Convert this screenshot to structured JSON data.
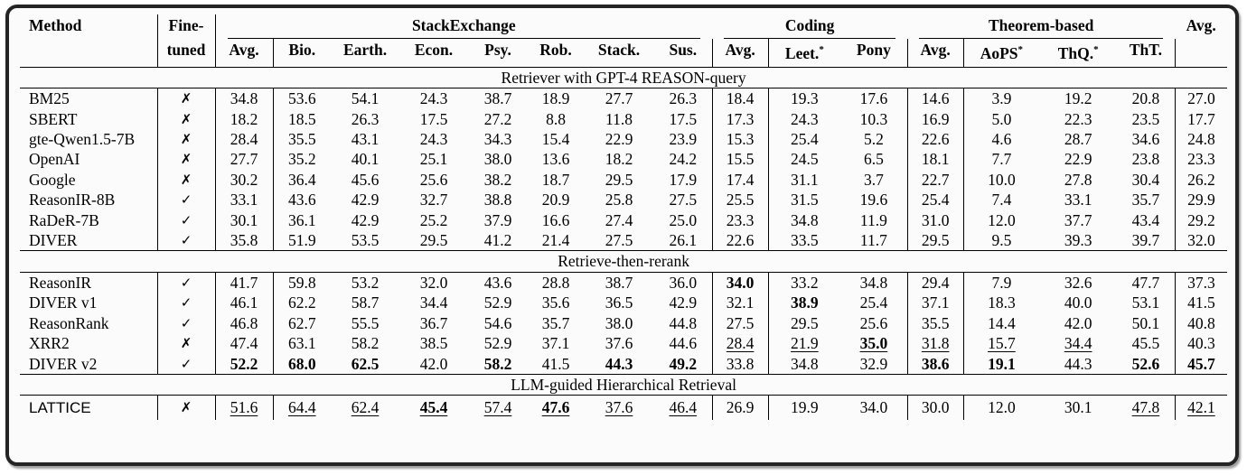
{
  "table": {
    "checkmark": "✓",
    "crossmark": "✗",
    "header": {
      "method": "Method",
      "fine_line1": "Fine-",
      "fine_line2": "tuned",
      "avg": "Avg.",
      "groups": [
        {
          "label": "StackExchange"
        },
        {
          "label": "Coding"
        },
        {
          "label": "Theorem-based"
        }
      ],
      "columns": [
        {
          "label": "Avg.",
          "sup": ""
        },
        {
          "label": "Bio.",
          "sup": ""
        },
        {
          "label": "Earth.",
          "sup": ""
        },
        {
          "label": "Econ.",
          "sup": ""
        },
        {
          "label": "Psy.",
          "sup": ""
        },
        {
          "label": "Rob.",
          "sup": ""
        },
        {
          "label": "Stack.",
          "sup": ""
        },
        {
          "label": "Sus.",
          "sup": ""
        },
        {
          "label": "Avg.",
          "sup": ""
        },
        {
          "label": "Leet.",
          "sup": "*"
        },
        {
          "label": "Pony",
          "sup": ""
        },
        {
          "label": "Avg.",
          "sup": ""
        },
        {
          "label": "AoPS",
          "sup": "*"
        },
        {
          "label": "ThQ.",
          "sup": "*"
        },
        {
          "label": "ThT.",
          "sup": ""
        }
      ]
    },
    "sections": [
      {
        "title": "Retriever with GPT-4 REASON-query",
        "rows": [
          {
            "method": "BM25",
            "tuned": false,
            "sans": false,
            "values": [
              "34.8",
              "53.6",
              "54.1",
              "24.3",
              "38.7",
              "18.9",
              "27.7",
              "26.3",
              "18.4",
              "19.3",
              "17.6",
              "14.6",
              "3.9",
              "19.2",
              "20.8",
              "27.0"
            ],
            "styles": [
              "",
              "",
              "",
              "",
              "",
              "",
              "",
              "",
              "",
              "",
              "",
              "",
              "",
              "",
              "",
              ""
            ]
          },
          {
            "method": "SBERT",
            "tuned": false,
            "sans": false,
            "values": [
              "18.2",
              "18.5",
              "26.3",
              "17.5",
              "27.2",
              "8.8",
              "11.8",
              "17.5",
              "17.3",
              "24.3",
              "10.3",
              "16.9",
              "5.0",
              "22.3",
              "23.5",
              "17.7"
            ],
            "styles": [
              "",
              "",
              "",
              "",
              "",
              "",
              "",
              "",
              "",
              "",
              "",
              "",
              "",
              "",
              "",
              ""
            ]
          },
          {
            "method": "gte-Qwen1.5-7B",
            "tuned": false,
            "sans": false,
            "values": [
              "28.4",
              "35.5",
              "43.1",
              "24.3",
              "34.3",
              "15.4",
              "22.9",
              "23.9",
              "15.3",
              "25.4",
              "5.2",
              "22.6",
              "4.6",
              "28.7",
              "34.6",
              "24.8"
            ],
            "styles": [
              "",
              "",
              "",
              "",
              "",
              "",
              "",
              "",
              "",
              "",
              "",
              "",
              "",
              "",
              "",
              ""
            ]
          },
          {
            "method": "OpenAI",
            "tuned": false,
            "sans": false,
            "values": [
              "27.7",
              "35.2",
              "40.1",
              "25.1",
              "38.0",
              "13.6",
              "18.2",
              "24.2",
              "15.5",
              "24.5",
              "6.5",
              "18.1",
              "7.7",
              "22.9",
              "23.8",
              "23.3"
            ],
            "styles": [
              "",
              "",
              "",
              "",
              "",
              "",
              "",
              "",
              "",
              "",
              "",
              "",
              "",
              "",
              "",
              ""
            ]
          },
          {
            "method": "Google",
            "tuned": false,
            "sans": false,
            "values": [
              "30.2",
              "36.4",
              "45.6",
              "25.6",
              "38.2",
              "18.7",
              "29.5",
              "17.9",
              "17.4",
              "31.1",
              "3.7",
              "22.7",
              "10.0",
              "27.8",
              "30.4",
              "26.2"
            ],
            "styles": [
              "",
              "",
              "",
              "",
              "",
              "",
              "",
              "",
              "",
              "",
              "",
              "",
              "",
              "",
              "",
              ""
            ]
          },
          {
            "method": "ReasonIR-8B",
            "tuned": true,
            "sans": false,
            "values": [
              "33.1",
              "43.6",
              "42.9",
              "32.7",
              "38.8",
              "20.9",
              "25.8",
              "27.5",
              "25.5",
              "31.5",
              "19.6",
              "25.4",
              "7.4",
              "33.1",
              "35.7",
              "29.9"
            ],
            "styles": [
              "",
              "",
              "",
              "",
              "",
              "",
              "",
              "",
              "",
              "",
              "",
              "",
              "",
              "",
              "",
              ""
            ]
          },
          {
            "method": "RaDeR-7B",
            "tuned": true,
            "sans": false,
            "values": [
              "30.1",
              "36.1",
              "42.9",
              "25.2",
              "37.9",
              "16.6",
              "27.4",
              "25.0",
              "23.3",
              "34.8",
              "11.9",
              "31.0",
              "12.0",
              "37.7",
              "43.4",
              "29.2"
            ],
            "styles": [
              "",
              "",
              "",
              "",
              "",
              "",
              "",
              "",
              "",
              "",
              "",
              "",
              "",
              "",
              "",
              ""
            ]
          },
          {
            "method": "DIVER",
            "tuned": true,
            "sans": false,
            "values": [
              "35.8",
              "51.9",
              "53.5",
              "29.5",
              "41.2",
              "21.4",
              "27.5",
              "26.1",
              "22.6",
              "33.5",
              "11.7",
              "29.5",
              "9.5",
              "39.3",
              "39.7",
              "32.0"
            ],
            "styles": [
              "",
              "",
              "",
              "",
              "",
              "",
              "",
              "",
              "",
              "",
              "",
              "",
              "",
              "",
              "",
              ""
            ]
          }
        ]
      },
      {
        "title": "Retrieve-then-rerank",
        "rows": [
          {
            "method": "ReasonIR",
            "tuned": true,
            "sans": false,
            "values": [
              "41.7",
              "59.8",
              "53.2",
              "32.0",
              "43.6",
              "28.8",
              "38.7",
              "36.0",
              "34.0",
              "33.2",
              "34.8",
              "29.4",
              "7.9",
              "32.6",
              "47.7",
              "37.3"
            ],
            "styles": [
              "",
              "",
              "",
              "",
              "",
              "",
              "",
              "",
              "b",
              "",
              "",
              "",
              "",
              "",
              "",
              ""
            ]
          },
          {
            "method": "DIVER v1",
            "tuned": true,
            "sans": false,
            "values": [
              "46.1",
              "62.2",
              "58.7",
              "34.4",
              "52.9",
              "35.6",
              "36.5",
              "42.9",
              "32.1",
              "38.9",
              "25.4",
              "37.1",
              "18.3",
              "40.0",
              "53.1",
              "41.5"
            ],
            "styles": [
              "",
              "",
              "",
              "",
              "",
              "",
              "",
              "",
              "",
              "b",
              "",
              "",
              "",
              "",
              "",
              ""
            ]
          },
          {
            "method": "ReasonRank",
            "tuned": true,
            "sans": false,
            "values": [
              "46.8",
              "62.7",
              "55.5",
              "36.7",
              "54.6",
              "35.7",
              "38.0",
              "44.8",
              "27.5",
              "29.5",
              "25.6",
              "35.5",
              "14.4",
              "42.0",
              "50.1",
              "40.8"
            ],
            "styles": [
              "",
              "",
              "",
              "",
              "",
              "",
              "",
              "",
              "",
              "",
              "",
              "",
              "",
              "",
              "",
              ""
            ]
          },
          {
            "method": "XRR2",
            "tuned": false,
            "sans": false,
            "values": [
              "47.4",
              "63.1",
              "58.2",
              "38.5",
              "52.9",
              "37.1",
              "37.6",
              "44.6",
              "28.4",
              "21.9",
              "35.0",
              "31.8",
              "15.7",
              "34.4",
              "45.5",
              "40.3"
            ],
            "styles": [
              "",
              "",
              "",
              "",
              "",
              "",
              "",
              "",
              "u",
              "u",
              "bu",
              "u",
              "u",
              "u",
              "",
              ""
            ]
          },
          {
            "method": "DIVER v2",
            "tuned": true,
            "sans": false,
            "values": [
              "52.2",
              "68.0",
              "62.5",
              "42.0",
              "58.2",
              "41.5",
              "44.3",
              "49.2",
              "33.8",
              "34.8",
              "32.9",
              "38.6",
              "19.1",
              "44.3",
              "52.6",
              "45.7"
            ],
            "styles": [
              "b",
              "b",
              "b",
              "",
              "b",
              "",
              "b",
              "b",
              "",
              "",
              "",
              "b",
              "b",
              "",
              "b",
              "b"
            ]
          }
        ]
      },
      {
        "title": "LLM-guided Hierarchical Retrieval",
        "rows": [
          {
            "method": "LATTICE",
            "tuned": false,
            "sans": true,
            "values": [
              "51.6",
              "64.4",
              "62.4",
              "45.4",
              "57.4",
              "47.6",
              "37.6",
              "46.4",
              "26.9",
              "19.9",
              "34.0",
              "30.0",
              "12.0",
              "30.1",
              "47.8",
              "42.1"
            ],
            "styles": [
              "u",
              "u",
              "u",
              "bu",
              "u",
              "bu",
              "u",
              "u",
              "",
              "",
              "",
              "",
              "",
              "",
              "u",
              "u"
            ]
          }
        ]
      }
    ]
  }
}
